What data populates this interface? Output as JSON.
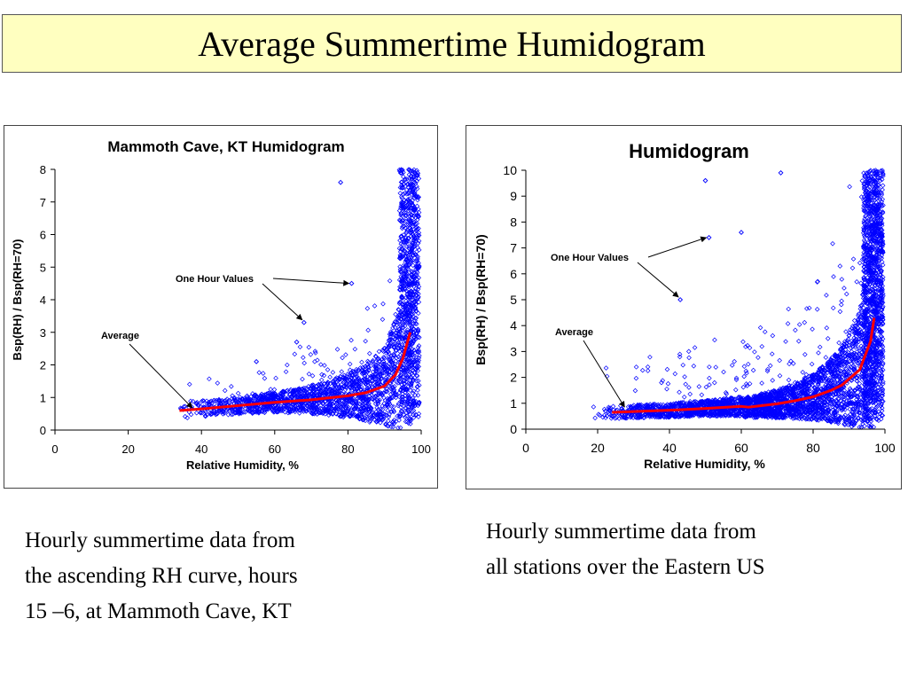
{
  "slide_title": "Average Summertime Humidogram",
  "captions": {
    "left": [
      "Hourly summertime data from",
      "the ascending RH curve, hours",
      "15 –6, at Mammoth Cave, KT"
    ],
    "right": [
      "Hourly summertime data from",
      "all stations over the Eastern US"
    ]
  },
  "colors": {
    "points": "#0000ff",
    "average_line": "#ff0000",
    "title_fill": "#ffffc0"
  },
  "chart_data": [
    {
      "type": "scatter",
      "title": "Mammoth Cave, KT Humidogram",
      "xlabel": "Relative Humidity, %",
      "ylabel": "Bsp(RH) / Bsp(RH=70)",
      "xlim": [
        0,
        100
      ],
      "ylim": [
        0,
        8
      ],
      "xticks": [
        0,
        20,
        40,
        60,
        80,
        100
      ],
      "yticks": [
        0,
        1,
        2,
        3,
        4,
        5,
        6,
        7,
        8
      ],
      "grid": false,
      "series": [
        {
          "name": "One Hour Values",
          "kind": "scatter-cloud",
          "marker": "open-diamond",
          "rh_range": [
            33,
            100
          ],
          "baseline_range": [
            0.3,
            1.2
          ],
          "notable_points": [
            [
              81,
              4.5
            ],
            [
              68,
              3.3
            ],
            [
              78,
              7.6
            ],
            [
              66,
              2.7
            ],
            [
              55,
              2.1
            ]
          ]
        },
        {
          "name": "Average",
          "kind": "line",
          "x": [
            34,
            40,
            50,
            60,
            70,
            80,
            85,
            90,
            93,
            95,
            96,
            97
          ],
          "y": [
            0.6,
            0.65,
            0.75,
            0.85,
            0.93,
            1.05,
            1.15,
            1.35,
            1.7,
            2.2,
            2.6,
            3.0
          ]
        }
      ],
      "annotations": [
        {
          "text": "One Hour Values",
          "arrow_to": [
            [
              81,
              4.5
            ],
            [
              68,
              3.3
            ]
          ]
        },
        {
          "text": "Average",
          "arrow_to": [
            [
              37,
              0.6
            ]
          ]
        }
      ]
    },
    {
      "type": "scatter",
      "title": "Humidogram",
      "xlabel": "Relative Humidity, %",
      "ylabel": "Bsp(RH) / Bsp(RH=70)",
      "xlim": [
        0,
        100
      ],
      "ylim": [
        0,
        10
      ],
      "xticks": [
        0,
        20,
        40,
        60,
        80,
        100
      ],
      "yticks": [
        0,
        1,
        2,
        3,
        4,
        5,
        6,
        7,
        8,
        9,
        10
      ],
      "grid": false,
      "series": [
        {
          "name": "One Hour Values",
          "kind": "scatter-cloud",
          "marker": "open-diamond",
          "rh_range": [
            18,
            100
          ],
          "baseline_range": [
            0.2,
            1.6
          ],
          "notable_points": [
            [
              51,
              7.4
            ],
            [
              43,
              5.0
            ],
            [
              50,
              9.6
            ],
            [
              71,
              9.9
            ],
            [
              60,
              7.6
            ]
          ]
        },
        {
          "name": "Average",
          "kind": "line",
          "x": [
            24,
            30,
            40,
            50,
            60,
            62,
            65,
            70,
            75,
            80,
            85,
            88,
            93,
            96,
            97
          ],
          "y": [
            0.65,
            0.68,
            0.73,
            0.8,
            0.88,
            0.85,
            0.9,
            0.98,
            1.1,
            1.25,
            1.5,
            1.7,
            2.3,
            3.4,
            4.3
          ]
        }
      ],
      "annotations": [
        {
          "text": "One Hour Values",
          "arrow_to": [
            [
              51,
              7.4
            ],
            [
              43,
              5.0
            ]
          ]
        },
        {
          "text": "Average",
          "arrow_to": [
            [
              27,
              0.75
            ]
          ]
        }
      ]
    }
  ]
}
